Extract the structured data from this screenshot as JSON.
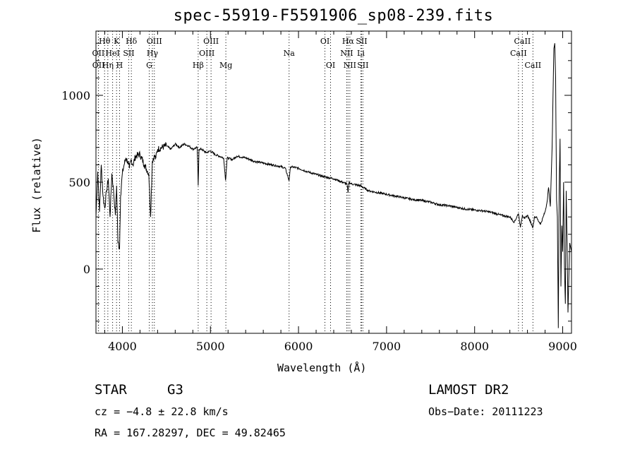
{
  "chart_data": {
    "type": "line",
    "title": "spec-55919-F5591906_sp08-239.fits",
    "xlabel": "Wavelength (Å)",
    "ylabel": "Flux (relative)",
    "xlim": [
      3700,
      9100
    ],
    "ylim": [
      -370,
      1370
    ],
    "xticks": [
      4000,
      5000,
      6000,
      7000,
      8000,
      9000
    ],
    "yticks": [
      0,
      500,
      1000
    ],
    "series": [
      {
        "x": [
          3700,
          3720,
          3740,
          3760,
          3780,
          3800,
          3820,
          3840,
          3860,
          3880,
          3900,
          3920,
          3935,
          3950,
          3968,
          3980,
          4000,
          4020,
          4040,
          4060,
          4080,
          4100,
          4120,
          4150,
          4200,
          4250,
          4300,
          4320,
          4340,
          4360,
          4380,
          4400,
          4450,
          4500,
          4550,
          4600,
          4650,
          4700,
          4750,
          4800,
          4850,
          4861,
          4870,
          4900,
          4950,
          5000,
          5050,
          5100,
          5150,
          5172,
          5190,
          5250,
          5300,
          5400,
          5500,
          5600,
          5700,
          5800,
          5850,
          5893,
          5910,
          6000,
          6100,
          6200,
          6300,
          6400,
          6500,
          6550,
          6563,
          6575,
          6600,
          6700,
          6800,
          6900,
          7000,
          7100,
          7200,
          7300,
          7400,
          7500,
          7600,
          7700,
          7800,
          7900,
          8000,
          8100,
          8200,
          8300,
          8400,
          8450,
          8498,
          8520,
          8542,
          8570,
          8600,
          8662,
          8680,
          8700,
          8720,
          8750,
          8800,
          8820,
          8840,
          8860,
          8880,
          8890,
          8900,
          8910,
          8920,
          8930,
          8940,
          8950,
          8960,
          8970,
          8980,
          8990,
          9000,
          9010,
          9020,
          9030,
          9040,
          9050,
          9060,
          9080,
          9100
        ],
        "y": [
          300,
          560,
          330,
          600,
          420,
          350,
          450,
          520,
          300,
          550,
          450,
          310,
          480,
          150,
          120,
          420,
          550,
          600,
          640,
          620,
          580,
          630,
          600,
          650,
          660,
          600,
          550,
          300,
          620,
          650,
          640,
          690,
          700,
          710,
          690,
          720,
          700,
          720,
          710,
          690,
          700,
          480,
          690,
          690,
          670,
          680,
          660,
          650,
          640,
          510,
          640,
          630,
          650,
          640,
          620,
          610,
          600,
          590,
          580,
          510,
          590,
          580,
          560,
          545,
          530,
          520,
          500,
          490,
          440,
          500,
          490,
          480,
          450,
          440,
          430,
          420,
          410,
          400,
          395,
          385,
          370,
          365,
          355,
          345,
          340,
          335,
          325,
          310,
          300,
          270,
          320,
          240,
          310,
          290,
          310,
          240,
          300,
          300,
          280,
          260,
          330,
          380,
          470,
          360,
          700,
          1000,
          1270,
          1300,
          1100,
          400,
          300,
          -340,
          450,
          750,
          -100,
          250,
          100,
          500,
          20,
          -200,
          450,
          150,
          -250,
          150,
          100
        ]
      }
    ],
    "lines": [
      {
        "label": "Hθ",
        "wl": 3798,
        "row": 0
      },
      {
        "label": "OII",
        "wl": 3727,
        "row": 1
      },
      {
        "label": "OII",
        "wl": 3729,
        "row": 2
      },
      {
        "label": "Hη",
        "wl": 3835,
        "row": 2
      },
      {
        "label": "K",
        "wl": 3934,
        "row": 0
      },
      {
        "label": "HeI",
        "wl": 3889,
        "row": 1
      },
      {
        "label": "H",
        "wl": 3968,
        "row": 2
      },
      {
        "label": "SII",
        "wl": 4072,
        "row": 1
      },
      {
        "label": "Hδ",
        "wl": 4102,
        "row": 0
      },
      {
        "label": "OIII",
        "wl": 4363,
        "row": 0
      },
      {
        "label": "Hγ",
        "wl": 4341,
        "row": 1
      },
      {
        "label": "G",
        "wl": 4305,
        "row": 2
      },
      {
        "label": "Hβ",
        "wl": 4861,
        "row": 2
      },
      {
        "label": "OIII",
        "wl": 5007,
        "row": 0
      },
      {
        "label": "OIII",
        "wl": 4959,
        "row": 1
      },
      {
        "label": "Mg",
        "wl": 5175,
        "row": 2
      },
      {
        "label": "Na",
        "wl": 5893,
        "row": 1
      },
      {
        "label": "OI",
        "wl": 6300,
        "row": 0
      },
      {
        "label": "OI",
        "wl": 6364,
        "row": 2
      },
      {
        "label": "Hα",
        "wl": 6563,
        "row": 0
      },
      {
        "label": "SII",
        "wl": 6716,
        "row": 0
      },
      {
        "label": "NII",
        "wl": 6548,
        "row": 1
      },
      {
        "label": "Li",
        "wl": 6708,
        "row": 1
      },
      {
        "label": "NII",
        "wl": 6583,
        "row": 2
      },
      {
        "label": "SII",
        "wl": 6731,
        "row": 2
      },
      {
        "label": "CaII",
        "wl": 8542,
        "row": 0
      },
      {
        "label": "CaII",
        "wl": 8498,
        "row": 1
      },
      {
        "label": "CaII",
        "wl": 8662,
        "row": 2
      }
    ]
  },
  "info": {
    "object_class": "STAR",
    "subclass": "G3",
    "survey": "LAMOST DR2",
    "cz": "cz = −4.8 ± 22.8 km/s",
    "obs_date": "Obs−Date: 20111223",
    "coords": "RA = 167.28297, DEC =  49.82465"
  }
}
